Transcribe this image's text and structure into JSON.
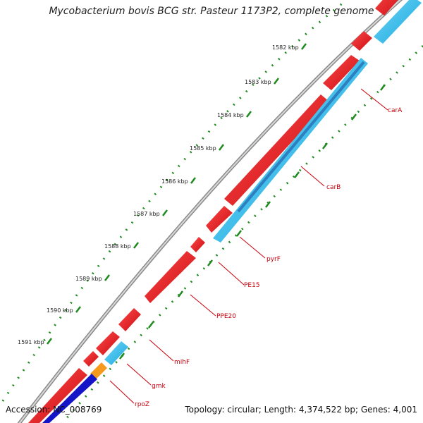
{
  "title": "Mycobacterium bovis BCG str. Pasteur 1173P2, complete genome",
  "footer": {
    "accession": "Accession: NC_008769",
    "summary": "Topology: circular; Length: 4,374,522 bp; Genes: 4,001"
  },
  "colors": {
    "backbone": "#8e8e8e",
    "forward_gene": "#e8141a",
    "reverse_gene": "#33bde8",
    "reverse_gene_dark": "#2e8fcf",
    "rna": "#1515c8",
    "orange_gene": "#f59a1c",
    "tick": "#1f8a1f",
    "gene_label": "#c8000a"
  },
  "scale_labels": [
    "1582 kbp",
    "1583 kbp",
    "1584 kbp",
    "1585 kbp",
    "1586 kbp",
    "1587 kbp",
    "1588 kbp",
    "1589 kbp",
    "1590 kbp",
    "1591 kbp"
  ],
  "gene_labels": [
    "carA",
    "carB",
    "pyrF",
    "PE15",
    "PPE20",
    "mihF",
    "gmk",
    "rpoZ"
  ]
}
